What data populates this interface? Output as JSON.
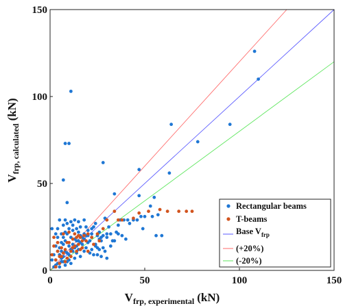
{
  "chart_data": {
    "type": "scatter",
    "xlim": [
      0,
      150
    ],
    "ylim": [
      0,
      150
    ],
    "xticks": [
      0,
      50,
      100,
      150
    ],
    "yticks": [
      0,
      50,
      100,
      150
    ],
    "xlabel": {
      "main": "V",
      "sub": "frp, experimental",
      "unit": "(kN)"
    },
    "ylabel": {
      "main": "V",
      "sub": "frp, calculated",
      "unit": "(kN)"
    },
    "grid": false,
    "legend_position": "bottom-right",
    "series": [
      {
        "name": "Rectangular beams",
        "color": "#1f77d4",
        "points": [
          [
            1,
            24
          ],
          [
            3,
            3
          ],
          [
            4,
            11
          ],
          [
            5,
            9
          ],
          [
            6,
            21
          ],
          [
            7,
            26
          ],
          [
            8,
            29
          ],
          [
            7,
            52
          ],
          [
            8,
            73
          ],
          [
            10,
            73
          ],
          [
            11,
            103
          ],
          [
            9,
            39
          ],
          [
            6,
            16
          ],
          [
            7,
            19
          ],
          [
            8,
            17
          ],
          [
            9,
            21
          ],
          [
            10,
            14
          ],
          [
            11,
            19
          ],
          [
            12,
            23
          ],
          [
            13,
            18
          ],
          [
            14,
            17
          ],
          [
            15,
            22
          ],
          [
            16,
            20
          ],
          [
            18,
            21
          ],
          [
            19,
            25
          ],
          [
            20,
            23
          ],
          [
            22,
            19
          ],
          [
            24,
            15
          ],
          [
            25,
            13
          ],
          [
            27,
            19
          ],
          [
            28,
            62
          ],
          [
            29,
            30
          ],
          [
            30,
            21
          ],
          [
            31,
            25
          ],
          [
            33,
            17
          ],
          [
            34,
            44
          ],
          [
            35,
            22
          ],
          [
            37,
            29
          ],
          [
            39,
            29
          ],
          [
            41,
            29
          ],
          [
            42,
            27
          ],
          [
            44,
            29
          ],
          [
            46,
            29
          ],
          [
            47,
            43
          ],
          [
            47,
            58
          ],
          [
            48,
            31
          ],
          [
            49,
            24
          ],
          [
            50,
            31
          ],
          [
            53,
            37
          ],
          [
            54,
            31
          ],
          [
            55,
            42
          ],
          [
            56,
            20
          ],
          [
            57,
            32
          ],
          [
            59,
            20
          ],
          [
            63,
            56
          ],
          [
            64,
            84
          ],
          [
            78,
            74
          ],
          [
            95,
            84
          ],
          [
            108,
            126
          ],
          [
            110,
            110
          ],
          [
            2,
            2
          ],
          [
            3,
            6
          ],
          [
            4,
            4
          ],
          [
            5,
            2
          ],
          [
            6,
            7
          ],
          [
            7,
            5
          ],
          [
            8,
            3
          ],
          [
            9,
            10
          ],
          [
            10,
            6
          ],
          [
            11,
            4
          ],
          [
            12,
            11
          ],
          [
            13,
            7
          ],
          [
            14,
            10
          ],
          [
            15,
            12
          ],
          [
            16,
            8
          ],
          [
            17,
            15
          ],
          [
            18,
            11
          ],
          [
            19,
            13
          ],
          [
            20,
            16
          ],
          [
            21,
            10
          ],
          [
            22,
            12
          ],
          [
            23,
            9
          ],
          [
            24,
            14
          ],
          [
            25,
            9
          ],
          [
            26,
            12
          ],
          [
            27,
            8
          ],
          [
            28,
            13
          ],
          [
            29,
            11
          ],
          [
            30,
            7
          ],
          [
            32,
            14
          ],
          [
            34,
            17
          ],
          [
            36,
            21
          ],
          [
            38,
            20
          ],
          [
            40,
            18
          ],
          [
            3,
            14
          ],
          [
            4,
            19
          ],
          [
            5,
            13
          ],
          [
            6,
            11
          ],
          [
            7,
            15
          ],
          [
            8,
            22
          ],
          [
            9,
            27
          ],
          [
            10,
            24
          ],
          [
            11,
            28
          ],
          [
            12,
            26
          ],
          [
            13,
            29
          ],
          [
            14,
            24
          ],
          [
            15,
            28
          ],
          [
            16,
            25
          ],
          [
            18,
            29
          ],
          [
            20,
            20
          ],
          [
            22,
            24
          ],
          [
            24,
            27
          ],
          [
            26,
            22
          ],
          [
            1,
            6
          ],
          [
            2,
            9
          ],
          [
            3,
            21
          ],
          [
            4,
            24
          ],
          [
            5,
            29
          ],
          [
            6,
            5
          ],
          [
            7,
            8
          ],
          [
            8,
            11
          ],
          [
            9,
            5
          ],
          [
            10,
            9
          ],
          [
            11,
            12
          ],
          [
            12,
            15
          ],
          [
            13,
            13
          ],
          [
            14,
            14
          ],
          [
            15,
            17
          ],
          [
            16,
            16
          ],
          [
            17,
            19
          ],
          [
            18,
            18
          ],
          [
            19,
            20
          ],
          [
            21,
            17
          ],
          [
            22,
            21
          ],
          [
            23,
            25
          ],
          [
            25,
            20
          ],
          [
            26,
            18
          ],
          [
            27,
            17
          ],
          [
            28,
            20
          ],
          [
            30,
            19
          ],
          [
            32,
            21
          ],
          [
            36,
            26
          ]
        ]
      },
      {
        "name": "T-beams",
        "color": "#d2541e",
        "points": [
          [
            1,
            9
          ],
          [
            2,
            14
          ],
          [
            3,
            6
          ],
          [
            4,
            11
          ],
          [
            5,
            4
          ],
          [
            6,
            8
          ],
          [
            7,
            10
          ],
          [
            8,
            12
          ],
          [
            9,
            7
          ],
          [
            10,
            16
          ],
          [
            11,
            11
          ],
          [
            12,
            18
          ],
          [
            13,
            14
          ],
          [
            14,
            19
          ],
          [
            15,
            15
          ],
          [
            16,
            12
          ],
          [
            17,
            17
          ],
          [
            18,
            20
          ],
          [
            20,
            21
          ],
          [
            22,
            19
          ],
          [
            25,
            21
          ],
          [
            28,
            24
          ],
          [
            30,
            29
          ],
          [
            34,
            34
          ],
          [
            36,
            29
          ],
          [
            38,
            29
          ],
          [
            44,
            30
          ],
          [
            47,
            33
          ],
          [
            52,
            34
          ],
          [
            58,
            35
          ],
          [
            62,
            34
          ],
          [
            68,
            34
          ],
          [
            72,
            34
          ],
          [
            75,
            34
          ],
          [
            3,
            2
          ],
          [
            5,
            8
          ],
          [
            6,
            13
          ],
          [
            8,
            5
          ],
          [
            9,
            16
          ],
          [
            11,
            8
          ],
          [
            12,
            13
          ],
          [
            14,
            11
          ],
          [
            15,
            20
          ],
          [
            17,
            13
          ],
          [
            19,
            17
          ],
          [
            20,
            11
          ],
          [
            23,
            15
          ],
          [
            26,
            17
          ],
          [
            2,
            19
          ],
          [
            4,
            16
          ],
          [
            7,
            21
          ],
          [
            10,
            22
          ],
          [
            13,
            21
          ],
          [
            16,
            19
          ]
        ]
      }
    ],
    "lines": [
      {
        "name": "Base V",
        "name_sub": "frp",
        "slope": 1.0,
        "color": "#5a5aff"
      },
      {
        "name": "(+20%)",
        "slope": 1.2,
        "color": "#ff6a6a"
      },
      {
        "name": "(-20%)",
        "slope": 0.8,
        "color": "#5ee65e"
      }
    ]
  }
}
